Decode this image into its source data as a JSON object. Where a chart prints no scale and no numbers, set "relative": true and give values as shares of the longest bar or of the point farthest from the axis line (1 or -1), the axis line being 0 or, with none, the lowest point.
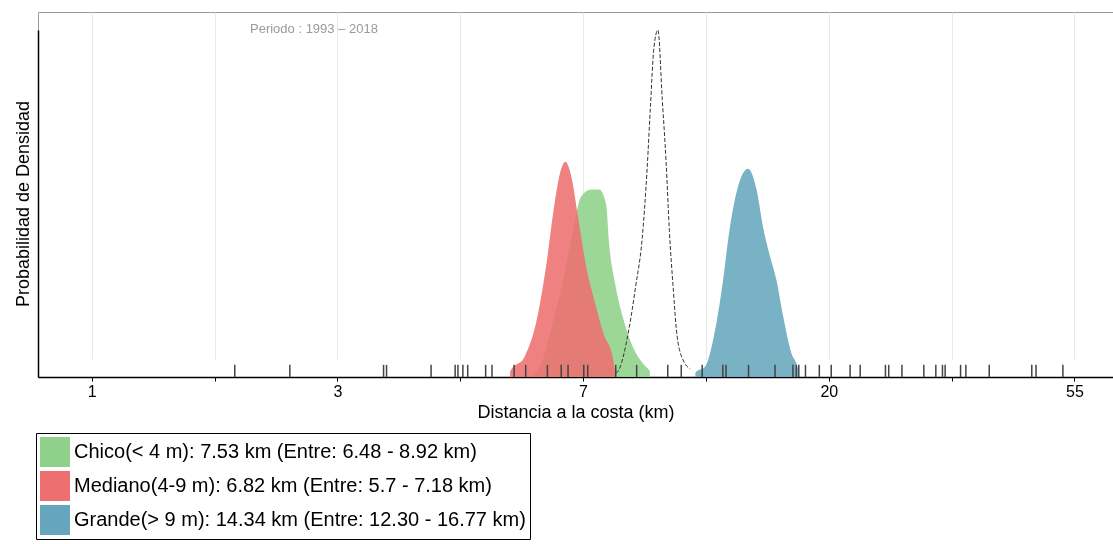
{
  "chart_data": {
    "type": "area",
    "xlabel": "Distancia a la costa (km)",
    "ylabel": "Probabilidad de Densidad",
    "annotations": [
      "Periodo : 1993 – 2018"
    ],
    "relative": true,
    "log": "x",
    "grid": "x",
    "legend": "bottom left",
    "xlim": [
      0.82,
      62.6
    ],
    "xticks": [
      1,
      {
        "value": 1.649,
        "label": null
      },
      {
        "value": 2.718,
        "label": "3"
      },
      {
        "value": 4.482,
        "label": null
      },
      {
        "value": 7.389,
        "label": "7"
      },
      {
        "value": 12.18,
        "label": null
      },
      {
        "value": 20.09,
        "label": "20"
      },
      {
        "value": 33.12,
        "label": null
      },
      {
        "value": 54.6,
        "label": "55"
      }
    ],
    "series": [
      {
        "name": "Chico(< 4 m): 7.53 km (Entre: 6.48 - 8.92 km)",
        "color": "#8fd18a",
        "x": [
          5.99,
          6.24,
          6.49,
          6.81,
          7.09,
          7.33,
          7.63,
          7.89,
          8.11,
          8.22,
          8.44,
          8.73,
          9.09,
          9.53,
          9.7,
          9.7
        ],
        "values": [
          0,
          0.04,
          0.14,
          0.28,
          0.42,
          0.52,
          0.54,
          0.54,
          0.5,
          0.38,
          0.26,
          0.16,
          0.08,
          0.03,
          0.015,
          0
        ]
      },
      {
        "name": "Mediano(4-9 m): 6.82 km (Entre: 5.7 - 7.18 km)",
        "color": "#ee6f70",
        "x": [
          5.49,
          5.49,
          5.83,
          6.11,
          6.37,
          6.58,
          6.76,
          6.87,
          7.04,
          7.24,
          7.48,
          7.74,
          8.05,
          8.33,
          8.41,
          8.44
        ],
        "values": [
          0,
          0.015,
          0.06,
          0.16,
          0.33,
          0.5,
          0.6,
          0.62,
          0.58,
          0.46,
          0.32,
          0.22,
          0.12,
          0.06,
          0.02,
          0
        ]
      },
      {
        "name": "Grande(> 9 m): 14.34 km (Entre: 12.30 - 16.77 km)",
        "color": "#66a6bd",
        "x": [
          11.67,
          11.67,
          12.15,
          12.56,
          12.99,
          13.43,
          13.89,
          14.47,
          14.97,
          15.38,
          15.8,
          16.23,
          16.66,
          17.24,
          17.71,
          17.78
        ],
        "values": [
          0,
          0.012,
          0.03,
          0.11,
          0.25,
          0.43,
          0.55,
          0.6,
          0.54,
          0.43,
          0.35,
          0.28,
          0.18,
          0.07,
          0.025,
          0
        ]
      },
      {
        "color": "#333333",
        "type": "line",
        "line_style": "dashed",
        "x": [
          8.44,
          8.5,
          8.91,
          9.15,
          9.4,
          9.59,
          9.72,
          9.86,
          10.02,
          10.2,
          10.36,
          10.5,
          10.66,
          10.83,
          11.13,
          11.43
        ],
        "values": [
          0.012,
          0.015,
          0.14,
          0.26,
          0.4,
          0.6,
          0.78,
          0.95,
          1,
          0.8,
          0.62,
          0.42,
          0.26,
          0.12,
          0.045,
          0.024
        ]
      },
      {
        "color": "#444444",
        "type": "bar",
        "x": [
          1.79,
          2.24,
          3.28,
          3.32,
          3.98,
          4.39,
          4.44,
          4.53,
          4.62,
          4.97,
          5.1,
          5.58,
          5.85,
          6.39,
          6.76,
          6.95,
          7.41,
          7.53,
          8.44,
          9.19,
          10.43,
          11.02,
          12.0,
          13.05,
          13.22,
          14.49,
          16.14,
          17.36,
          17.6,
          17.78,
          18.27,
          19.33,
          20.29,
          21.91,
          22.83,
          25.3,
          25.64,
          27.06,
          29.58,
          31.06,
          31.91,
          32.26,
          34.35,
          35.1,
          38.6,
          45.9,
          46.7,
          52.1
        ],
        "values": [
          0.035,
          0.035,
          0.035,
          0.035,
          0.035,
          0.035,
          0.035,
          0.035,
          0.035,
          0.035,
          0.035,
          0.035,
          0.035,
          0.035,
          0.035,
          0.035,
          0.035,
          0.035,
          0.035,
          0.035,
          0.035,
          0.035,
          0.035,
          0.035,
          0.035,
          0.035,
          0.035,
          0.035,
          0.035,
          0.035,
          0.035,
          0.035,
          0.035,
          0.035,
          0.035,
          0.035,
          0.035,
          0.035,
          0.035,
          0.035,
          0.035,
          0.035,
          0.035,
          0.035,
          0.035,
          0.035,
          0.035,
          0.035
        ]
      }
    ]
  }
}
